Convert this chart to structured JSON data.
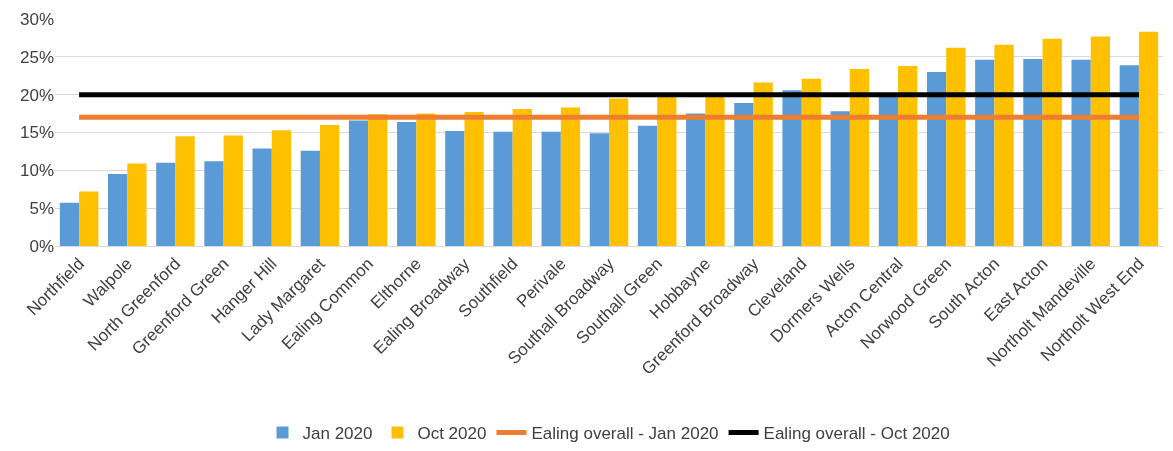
{
  "chart_data": {
    "type": "bar",
    "categories": [
      "Northfield",
      "Walpole",
      "North Greenford",
      "Greenford Green",
      "Hanger Hill",
      "Lady Margaret",
      "Ealing Common",
      "Elthorne",
      "Ealing Broadway",
      "Southfield",
      "Perivale",
      "Southall Broadway",
      "Southall Green",
      "Hobbayne",
      "Greenford Broadway",
      "Cleveland",
      "Dormers Wells",
      "Acton Central",
      "Norwood Green",
      "South Acton",
      "East Acton",
      "Northolt Mandeville",
      "Northolt West End"
    ],
    "series": [
      {
        "name": "Jan 2020",
        "color": "#5b9bd5",
        "values": [
          5.7,
          9.5,
          11.0,
          11.2,
          12.9,
          12.6,
          16.6,
          16.4,
          15.2,
          15.1,
          15.1,
          14.9,
          15.9,
          17.5,
          18.9,
          20.6,
          17.8,
          19.7,
          23.0,
          24.6,
          24.7,
          24.6,
          23.9
        ]
      },
      {
        "name": "Oct 2020",
        "color": "#ffc000",
        "values": [
          7.2,
          10.9,
          14.5,
          14.6,
          15.3,
          16.0,
          17.4,
          17.5,
          17.7,
          18.1,
          18.3,
          19.5,
          19.8,
          19.8,
          21.6,
          22.1,
          23.4,
          23.8,
          26.2,
          26.6,
          27.4,
          27.7,
          28.3
        ]
      },
      {
        "name": "Ealing overall - Jan 2020",
        "type": "line",
        "color": "#ed7d31",
        "values": [
          17,
          17,
          17,
          17,
          17,
          17,
          17,
          17,
          17,
          17,
          17,
          17,
          17,
          17,
          17,
          17,
          17,
          17,
          17,
          17,
          17,
          17,
          17
        ]
      },
      {
        "name": "Ealing overall - Oct 2020",
        "type": "line",
        "color": "#000000",
        "values": [
          20,
          20,
          20,
          20,
          20,
          20,
          20,
          20,
          20,
          20,
          20,
          20,
          20,
          20,
          20,
          20,
          20,
          20,
          20,
          20,
          20,
          20,
          20
        ]
      }
    ],
    "ylim": [
      0,
      30
    ],
    "yticks": [
      {
        "value": 0,
        "label": "0%"
      },
      {
        "value": 5,
        "label": "5%"
      },
      {
        "value": 10,
        "label": "10%"
      },
      {
        "value": 15,
        "label": "15%"
      },
      {
        "value": 20,
        "label": "20%"
      },
      {
        "value": 25,
        "label": "25%"
      },
      {
        "value": 30,
        "label": "30%"
      }
    ],
    "grid": "y",
    "legend": "bottom",
    "marker": "none"
  }
}
